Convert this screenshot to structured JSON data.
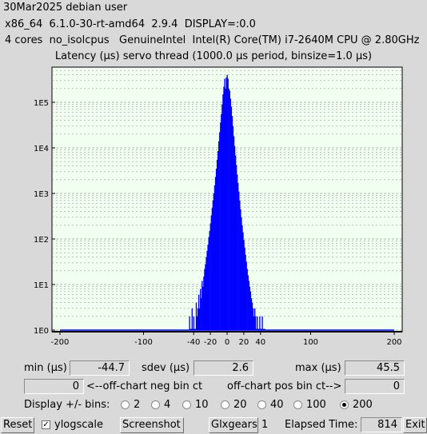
{
  "header": {
    "line1": "30Mar2025 debian user",
    "line2": "x86_64  6.1.0-30-rt-amd64  2.9.4  DISPLAY=:0.0",
    "line3": "4 cores  no_isolcpus   GenuineIntel  Intel(R) Core(TM) i7-2640M CPU @ 2.80GHz"
  },
  "chart_data": {
    "type": "bar",
    "title": "Latency (µs) servo thread (1000.0 µs period, binsize=1.0 µs)",
    "xlabel": "",
    "ylabel": "",
    "xlim": [
      -200,
      200
    ],
    "ylim": [
      1,
      500000
    ],
    "yscale": "log",
    "x_ticks": [
      -200,
      -100,
      -40,
      -20,
      0,
      20,
      40,
      100,
      200
    ],
    "y_tick_labels": [
      "1E0",
      "1E1",
      "1E2",
      "1E3",
      "1E4",
      "1E5"
    ],
    "grid": true,
    "color": "#0000ff",
    "series": [
      {
        "x": [
          -45,
          -44,
          -43,
          -42,
          -41,
          -40,
          -39,
          -38,
          -37,
          -36,
          -35,
          -34,
          -33,
          -32,
          -31,
          -30,
          -29,
          -28,
          -27,
          -26,
          -25,
          -24,
          -23,
          -22,
          -21,
          -20,
          -19,
          -18,
          -17,
          -16,
          -15,
          -14,
          -13,
          -12,
          -11,
          -10,
          -9,
          -8,
          -7,
          -6,
          -5,
          -4,
          -3,
          -2,
          -1,
          0,
          1,
          2,
          3,
          4,
          5,
          6,
          7,
          8,
          9,
          10,
          11,
          12,
          13,
          14,
          15,
          16,
          17,
          18,
          19,
          20,
          21,
          22,
          23,
          24,
          25,
          26,
          27,
          28,
          29,
          30,
          31,
          32,
          33,
          34,
          35,
          36,
          37,
          38,
          39,
          40,
          41,
          42,
          43,
          44,
          45
        ],
        "values": [
          2,
          1,
          1,
          3,
          1,
          2,
          1,
          1,
          4,
          2,
          3,
          6,
          3,
          8,
          5,
          12,
          9,
          15,
          22,
          28,
          40,
          55,
          75,
          110,
          150,
          220,
          330,
          480,
          700,
          1000,
          1500,
          2300,
          3500,
          5500,
          8500,
          14000,
          22000,
          36000,
          55000,
          90000,
          150000,
          220000,
          330000,
          200000,
          350000,
          400000,
          330000,
          200000,
          180000,
          120000,
          80000,
          50000,
          30000,
          18000,
          11000,
          6800,
          4200,
          2600,
          1700,
          1100,
          700,
          450,
          300,
          200,
          140,
          95,
          65,
          45,
          32,
          22,
          16,
          12,
          9,
          7,
          5,
          4,
          3,
          2,
          3,
          2,
          1,
          2,
          1,
          1,
          2,
          1,
          1,
          2,
          1,
          1,
          1
        ]
      }
    ]
  },
  "stats": {
    "min_label": "min (µs)",
    "min_value": "-44.7",
    "sdev_label": "sdev (µs)",
    "sdev_value": "2.6",
    "max_label": "max (µs)",
    "max_value": "45.5",
    "neg_value": "0",
    "neg_label": "<--off-chart neg bin ct",
    "pos_label": "off-chart pos bin ct-->",
    "pos_value": "0"
  },
  "bins": {
    "label": "Display +/- bins:",
    "options": [
      "2",
      "4",
      "10",
      "20",
      "40",
      "100",
      "200"
    ],
    "selected": "200"
  },
  "toolbar": {
    "reset": "Reset",
    "ylogscale": "ylogscale",
    "ylogscale_checked": true,
    "screenshot": "Screenshot",
    "glxgears": "Glxgears",
    "glxgears_count": "1",
    "elapsed_label": "Elapsed Time:",
    "elapsed_value": "814",
    "exit": "Exit"
  }
}
